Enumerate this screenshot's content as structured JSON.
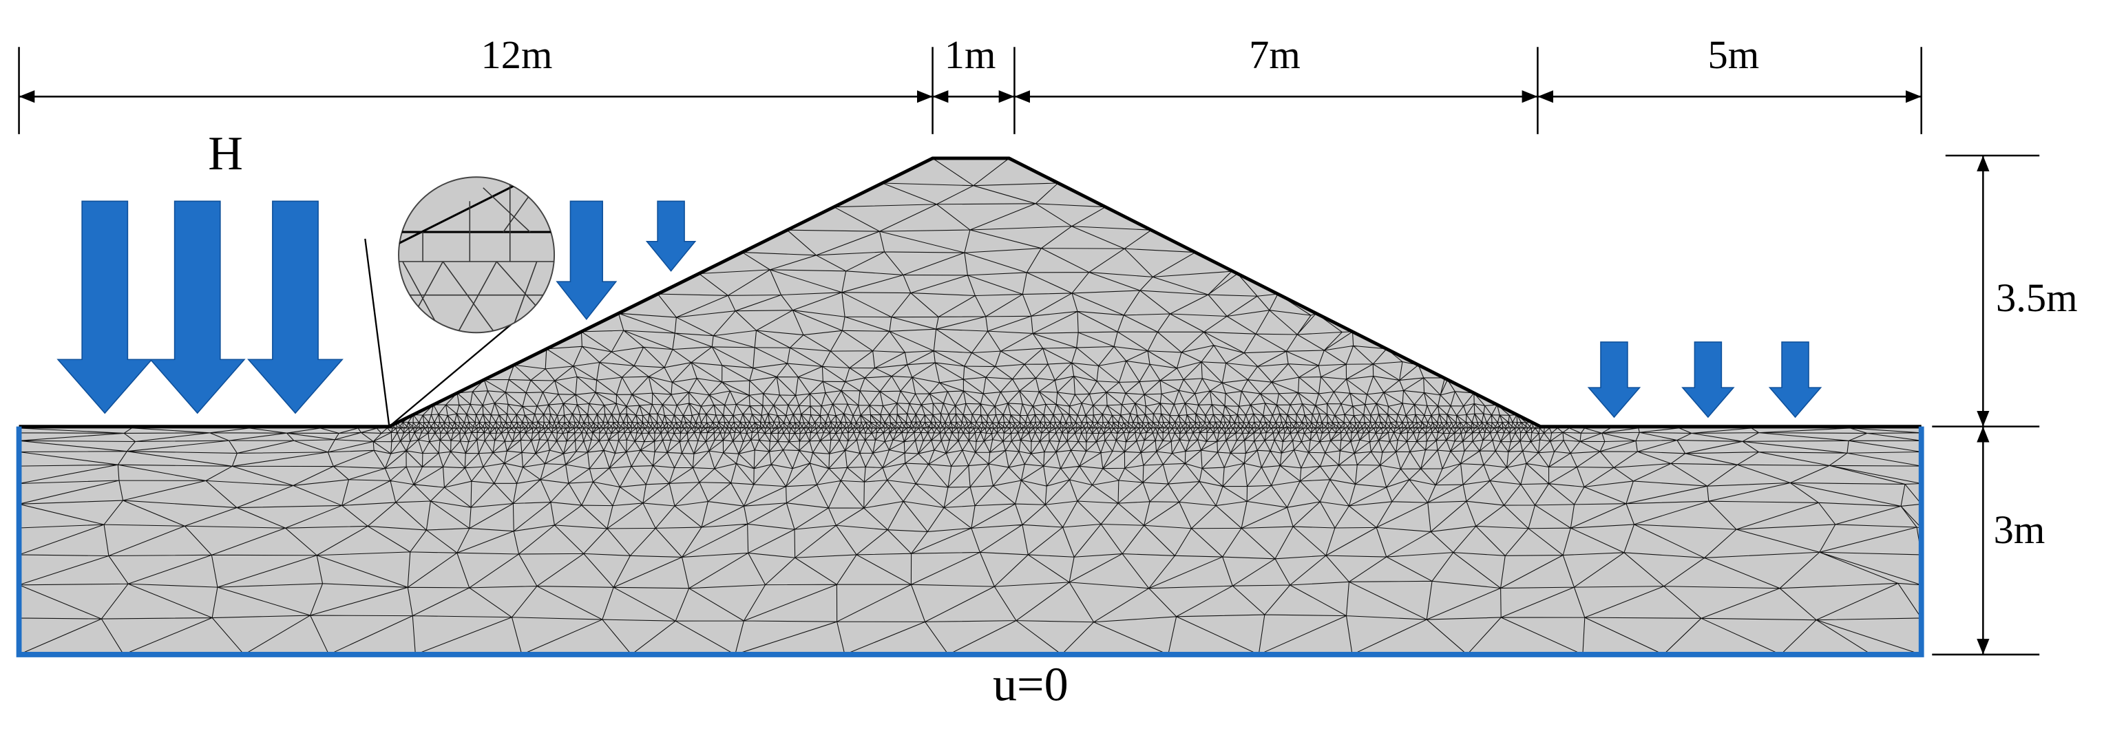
{
  "dimensions": {
    "top": [
      "12m",
      "1m",
      "7m",
      "5m"
    ],
    "right": [
      "3.5m",
      "3m"
    ]
  },
  "labels": {
    "load": "H",
    "boundary": "u=0"
  }
}
